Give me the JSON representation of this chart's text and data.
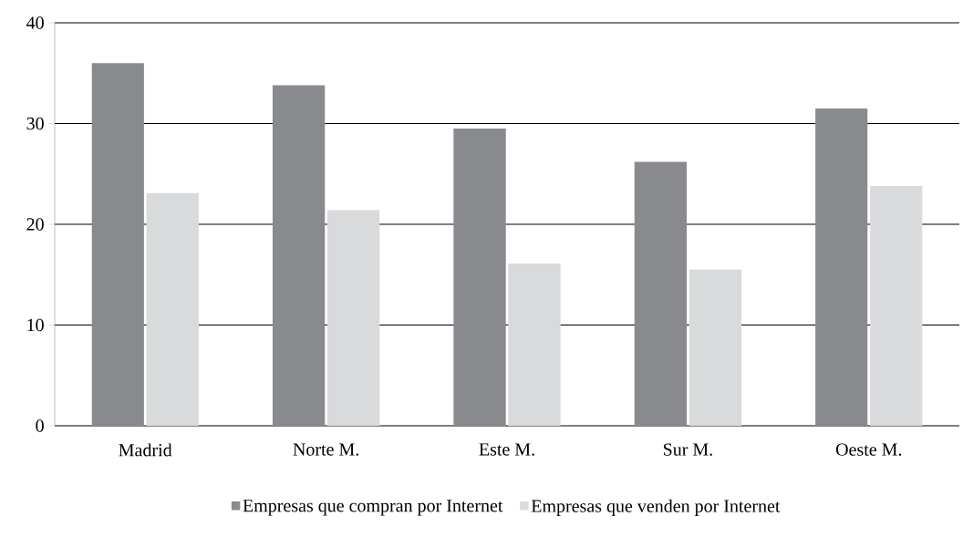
{
  "chart_data": {
    "type": "bar",
    "categories": [
      "Madrid",
      "Norte M.",
      "Este M.",
      "Sur M.",
      "Oeste M."
    ],
    "series": [
      {
        "name": "Empresas que compran por Internet",
        "color": "#898a8e",
        "values": [
          36.0,
          33.8,
          29.5,
          26.2,
          31.5
        ]
      },
      {
        "name": "Empresas que venden por Internet",
        "color": "#d9dadc",
        "values": [
          23.1,
          21.4,
          16.1,
          15.5,
          23.8
        ]
      }
    ],
    "ylim": [
      0,
      40
    ],
    "yticks": [
      0,
      10,
      20,
      30,
      40
    ],
    "grid": "y",
    "legend": "bottom"
  }
}
